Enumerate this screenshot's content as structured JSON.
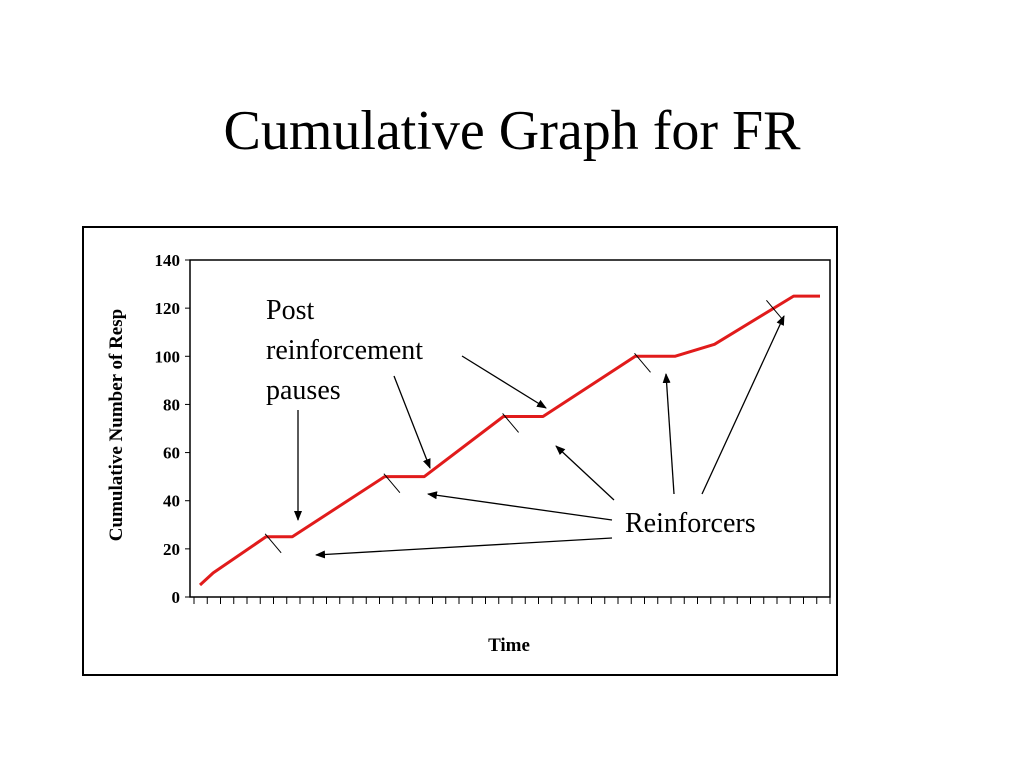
{
  "slide": {
    "title": "Cumulative Graph for FR"
  },
  "chart_data": {
    "type": "line",
    "title": "Cumulative Graph for FR",
    "xlabel": "Time",
    "ylabel": "Cumulative Number of Resp",
    "ylim": [
      0,
      140
    ],
    "yticks": [
      0,
      20,
      40,
      60,
      80,
      100,
      120,
      140
    ],
    "x_tick_count": 48,
    "grid": false,
    "line_color": "#e11b1b",
    "series": [
      {
        "x": [
          0,
          1,
          5,
          6,
          7,
          14,
          15,
          16,
          17,
          23,
          24,
          25,
          26,
          33,
          34,
          35,
          36,
          39,
          45,
          46,
          47
        ],
        "values": [
          5,
          10,
          25,
          25,
          25,
          50,
          50,
          50,
          50,
          75,
          75,
          75,
          75,
          100,
          100,
          100,
          100,
          105,
          125,
          125,
          125
        ]
      }
    ],
    "reinforcer_marks": [
      {
        "x": 6,
        "y": 25
      },
      {
        "x": 15,
        "y": 50
      },
      {
        "x": 24,
        "y": 75
      },
      {
        "x": 34,
        "y": 100
      },
      {
        "x": 44,
        "y": 122
      }
    ],
    "annotations": [
      {
        "id": "pause",
        "lines": [
          "Post",
          "reinforcement",
          "pauses"
        ]
      },
      {
        "id": "reinforcers",
        "lines": [
          "Reinforcers"
        ]
      }
    ]
  }
}
